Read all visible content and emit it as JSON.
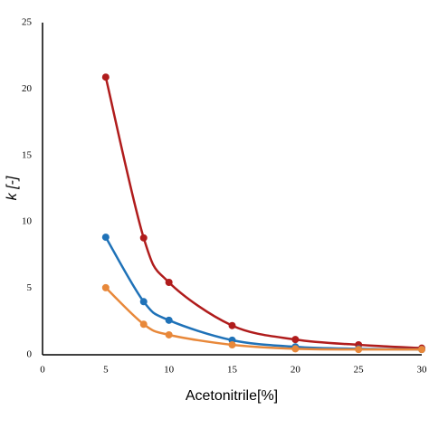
{
  "chart_data": {
    "type": "line",
    "smooth": true,
    "x_label": "Acetonitrile[%]",
    "y_label": "k [-]",
    "x": [
      5,
      8,
      10,
      15,
      20,
      25,
      30
    ],
    "series": [
      {
        "color": "#b01c1c",
        "values": [
          20.9,
          8.8,
          5.45,
          2.2,
          1.15,
          0.75,
          0.5
        ]
      },
      {
        "color": "#1f72b8",
        "values": [
          8.85,
          4.0,
          2.6,
          1.1,
          0.6,
          0.45,
          0.4
        ]
      },
      {
        "color": "#e8883a",
        "values": [
          5.05,
          2.3,
          1.5,
          0.75,
          0.45,
          0.4,
          0.4
        ]
      }
    ],
    "xlim": [
      0,
      30
    ],
    "xticks": [
      0,
      5,
      10,
      15,
      20,
      25,
      30
    ],
    "ylim": [
      0,
      25
    ],
    "yticks": [
      0,
      5,
      10,
      15,
      20,
      25
    ]
  }
}
